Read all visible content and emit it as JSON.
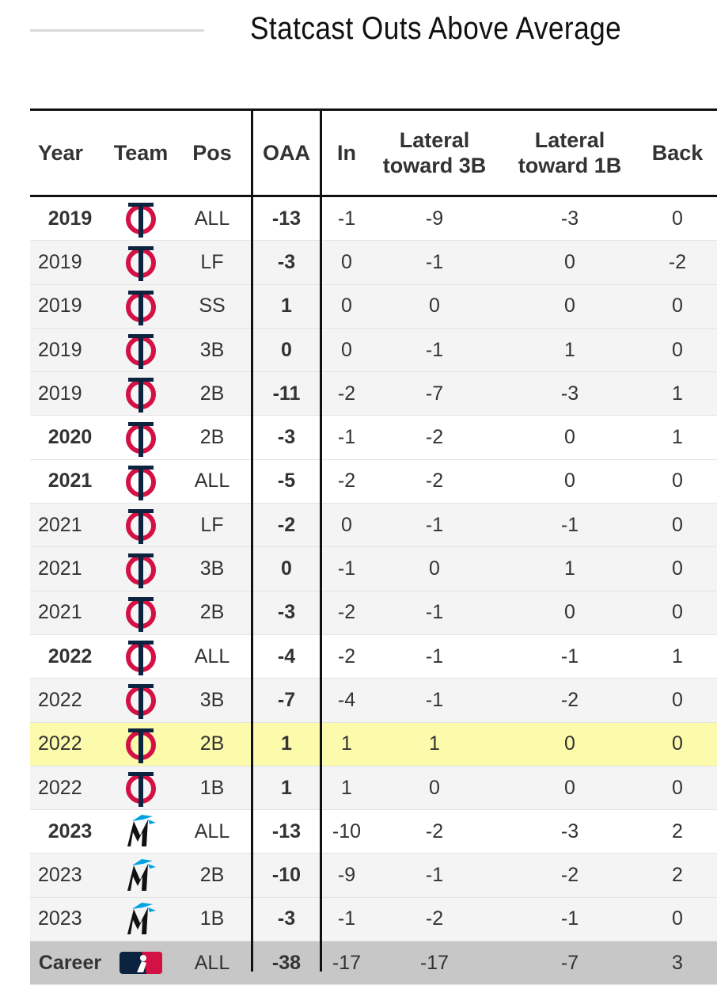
{
  "title": "Statcast Outs Above Average",
  "columns": {
    "year": "Year",
    "team": "Team",
    "pos": "Pos",
    "oaa": "OAA",
    "in": "In",
    "lateral3b": "Lateral toward 3B",
    "lateral1b": "Lateral toward 1B",
    "back": "Back"
  },
  "rows": [
    {
      "year": "2019",
      "team": "twins-logo",
      "pos": "ALL",
      "oaa": "-13",
      "in": "-1",
      "l3": "-9",
      "l1": "-3",
      "back": "0",
      "style": "bold"
    },
    {
      "year": "2019",
      "team": "twins-logo",
      "pos": "LF",
      "oaa": "-3",
      "in": "0",
      "l3": "-1",
      "l1": "0",
      "back": "-2",
      "style": "plain"
    },
    {
      "year": "2019",
      "team": "twins-logo",
      "pos": "SS",
      "oaa": "1",
      "in": "0",
      "l3": "0",
      "l1": "0",
      "back": "0",
      "style": "plain"
    },
    {
      "year": "2019",
      "team": "twins-logo",
      "pos": "3B",
      "oaa": "0",
      "in": "0",
      "l3": "-1",
      "l1": "1",
      "back": "0",
      "style": "plain"
    },
    {
      "year": "2019",
      "team": "twins-logo",
      "pos": "2B",
      "oaa": "-11",
      "in": "-2",
      "l3": "-7",
      "l1": "-3",
      "back": "1",
      "style": "plain"
    },
    {
      "year": "2020",
      "team": "twins-logo",
      "pos": "2B",
      "oaa": "-3",
      "in": "-1",
      "l3": "-2",
      "l1": "0",
      "back": "1",
      "style": "bold"
    },
    {
      "year": "2021",
      "team": "twins-logo",
      "pos": "ALL",
      "oaa": "-5",
      "in": "-2",
      "l3": "-2",
      "l1": "0",
      "back": "0",
      "style": "bold"
    },
    {
      "year": "2021",
      "team": "twins-logo",
      "pos": "LF",
      "oaa": "-2",
      "in": "0",
      "l3": "-1",
      "l1": "-1",
      "back": "0",
      "style": "plain"
    },
    {
      "year": "2021",
      "team": "twins-logo",
      "pos": "3B",
      "oaa": "0",
      "in": "-1",
      "l3": "0",
      "l1": "1",
      "back": "0",
      "style": "plain"
    },
    {
      "year": "2021",
      "team": "twins-logo",
      "pos": "2B",
      "oaa": "-3",
      "in": "-2",
      "l3": "-1",
      "l1": "0",
      "back": "0",
      "style": "plain"
    },
    {
      "year": "2022",
      "team": "twins-logo",
      "pos": "ALL",
      "oaa": "-4",
      "in": "-2",
      "l3": "-1",
      "l1": "-1",
      "back": "1",
      "style": "bold"
    },
    {
      "year": "2022",
      "team": "twins-logo",
      "pos": "3B",
      "oaa": "-7",
      "in": "-4",
      "l3": "-1",
      "l1": "-2",
      "back": "0",
      "style": "plain"
    },
    {
      "year": "2022",
      "team": "twins-logo",
      "pos": "2B",
      "oaa": "1",
      "in": "1",
      "l3": "1",
      "l1": "0",
      "back": "0",
      "style": "highlight"
    },
    {
      "year": "2022",
      "team": "twins-logo",
      "pos": "1B",
      "oaa": "1",
      "in": "1",
      "l3": "0",
      "l1": "0",
      "back": "0",
      "style": "plain"
    },
    {
      "year": "2023",
      "team": "marlins-logo",
      "pos": "ALL",
      "oaa": "-13",
      "in": "-10",
      "l3": "-2",
      "l1": "-3",
      "back": "2",
      "style": "bold"
    },
    {
      "year": "2023",
      "team": "marlins-logo",
      "pos": "2B",
      "oaa": "-10",
      "in": "-9",
      "l3": "-1",
      "l1": "-2",
      "back": "2",
      "style": "plain"
    },
    {
      "year": "2023",
      "team": "marlins-logo",
      "pos": "1B",
      "oaa": "-3",
      "in": "-1",
      "l3": "-2",
      "l1": "-1",
      "back": "0",
      "style": "plain"
    },
    {
      "year": "Career",
      "team": "mlb-logo",
      "pos": "ALL",
      "oaa": "-38",
      "in": "-17",
      "l3": "-17",
      "l1": "-7",
      "back": "3",
      "style": "career"
    }
  ],
  "colors": {
    "twins_red": "#d31145",
    "twins_navy": "#0c2340",
    "marlins_teal": "#00a3e0",
    "highlight": "#fbfbab",
    "career_bg": "#c7c7c7"
  }
}
